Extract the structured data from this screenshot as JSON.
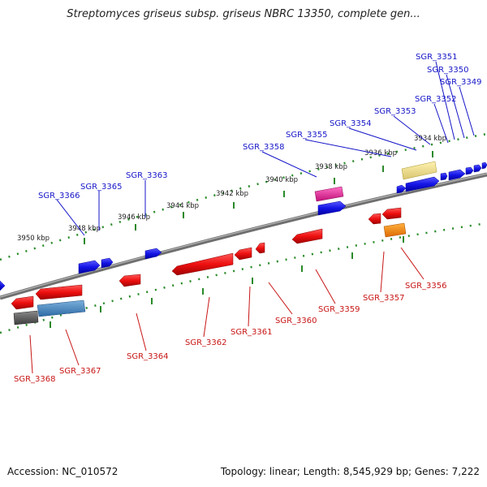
{
  "title": "Streptomyces griseus subsp. griseus NBRC 13350, complete gen...",
  "footer": {
    "accession": "Accession: NC_010572",
    "summary": "Topology: linear; Length: 8,545,929 bp; Genes: 7,222"
  },
  "colors": {
    "backbone": "#7f7f7f",
    "ruler": "#2a8a2a",
    "forward_label": "#1515c8",
    "reverse_label": "#c81515",
    "forward_gene": "#1a1ae6",
    "reverse_gene": "#e61212"
  },
  "scale_labels": [
    "3950 kbp",
    "3948 kbp",
    "3946 kbp",
    "3944 kbp",
    "3942 kbp",
    "3940 kbp",
    "3938 kbp",
    "3936 kbp",
    "3934 kbp"
  ],
  "forward_genes": [
    "SGR_3366",
    "SGR_3365",
    "SGR_3363",
    "SGR_3358",
    "SGR_3355",
    "SGR_3354",
    "SGR_3353",
    "SGR_3352",
    "SGR_3351",
    "SGR_3350",
    "SGR_3349"
  ],
  "reverse_genes": [
    "SGR_3368",
    "SGR_3367",
    "SGR_3364",
    "SGR_3362",
    "SGR_3361",
    "SGR_3360",
    "SGR_3359",
    "SGR_3357",
    "SGR_3356"
  ]
}
